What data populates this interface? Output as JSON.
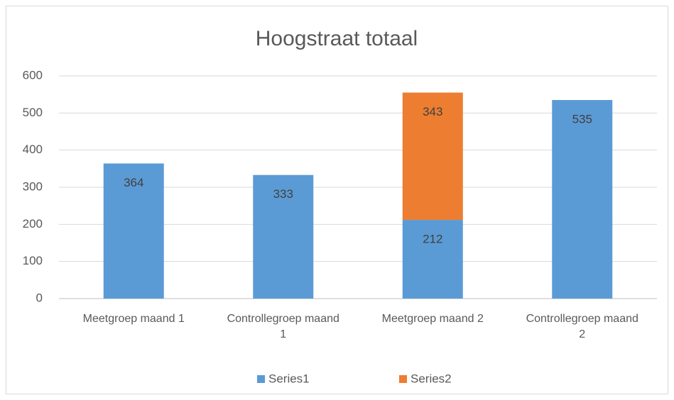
{
  "chart_data": {
    "type": "stacked_bar",
    "title": "Hoogstraat totaal",
    "categories": [
      "Meetgroep maand 1",
      "Controllegroep maand 1",
      "Meetgroep maand 2",
      "Controllegroep maand 2"
    ],
    "series": [
      {
        "name": "Series1",
        "color": "#5b9bd5",
        "values": [
          364,
          333,
          212,
          535
        ]
      },
      {
        "name": "Series2",
        "color": "#ed7d31",
        "values": [
          null,
          null,
          343,
          null
        ]
      }
    ],
    "ylim": [
      0,
      600
    ],
    "yticks": [
      0,
      100,
      200,
      300,
      400,
      500,
      600
    ],
    "grid": true,
    "legend": "bottom"
  }
}
